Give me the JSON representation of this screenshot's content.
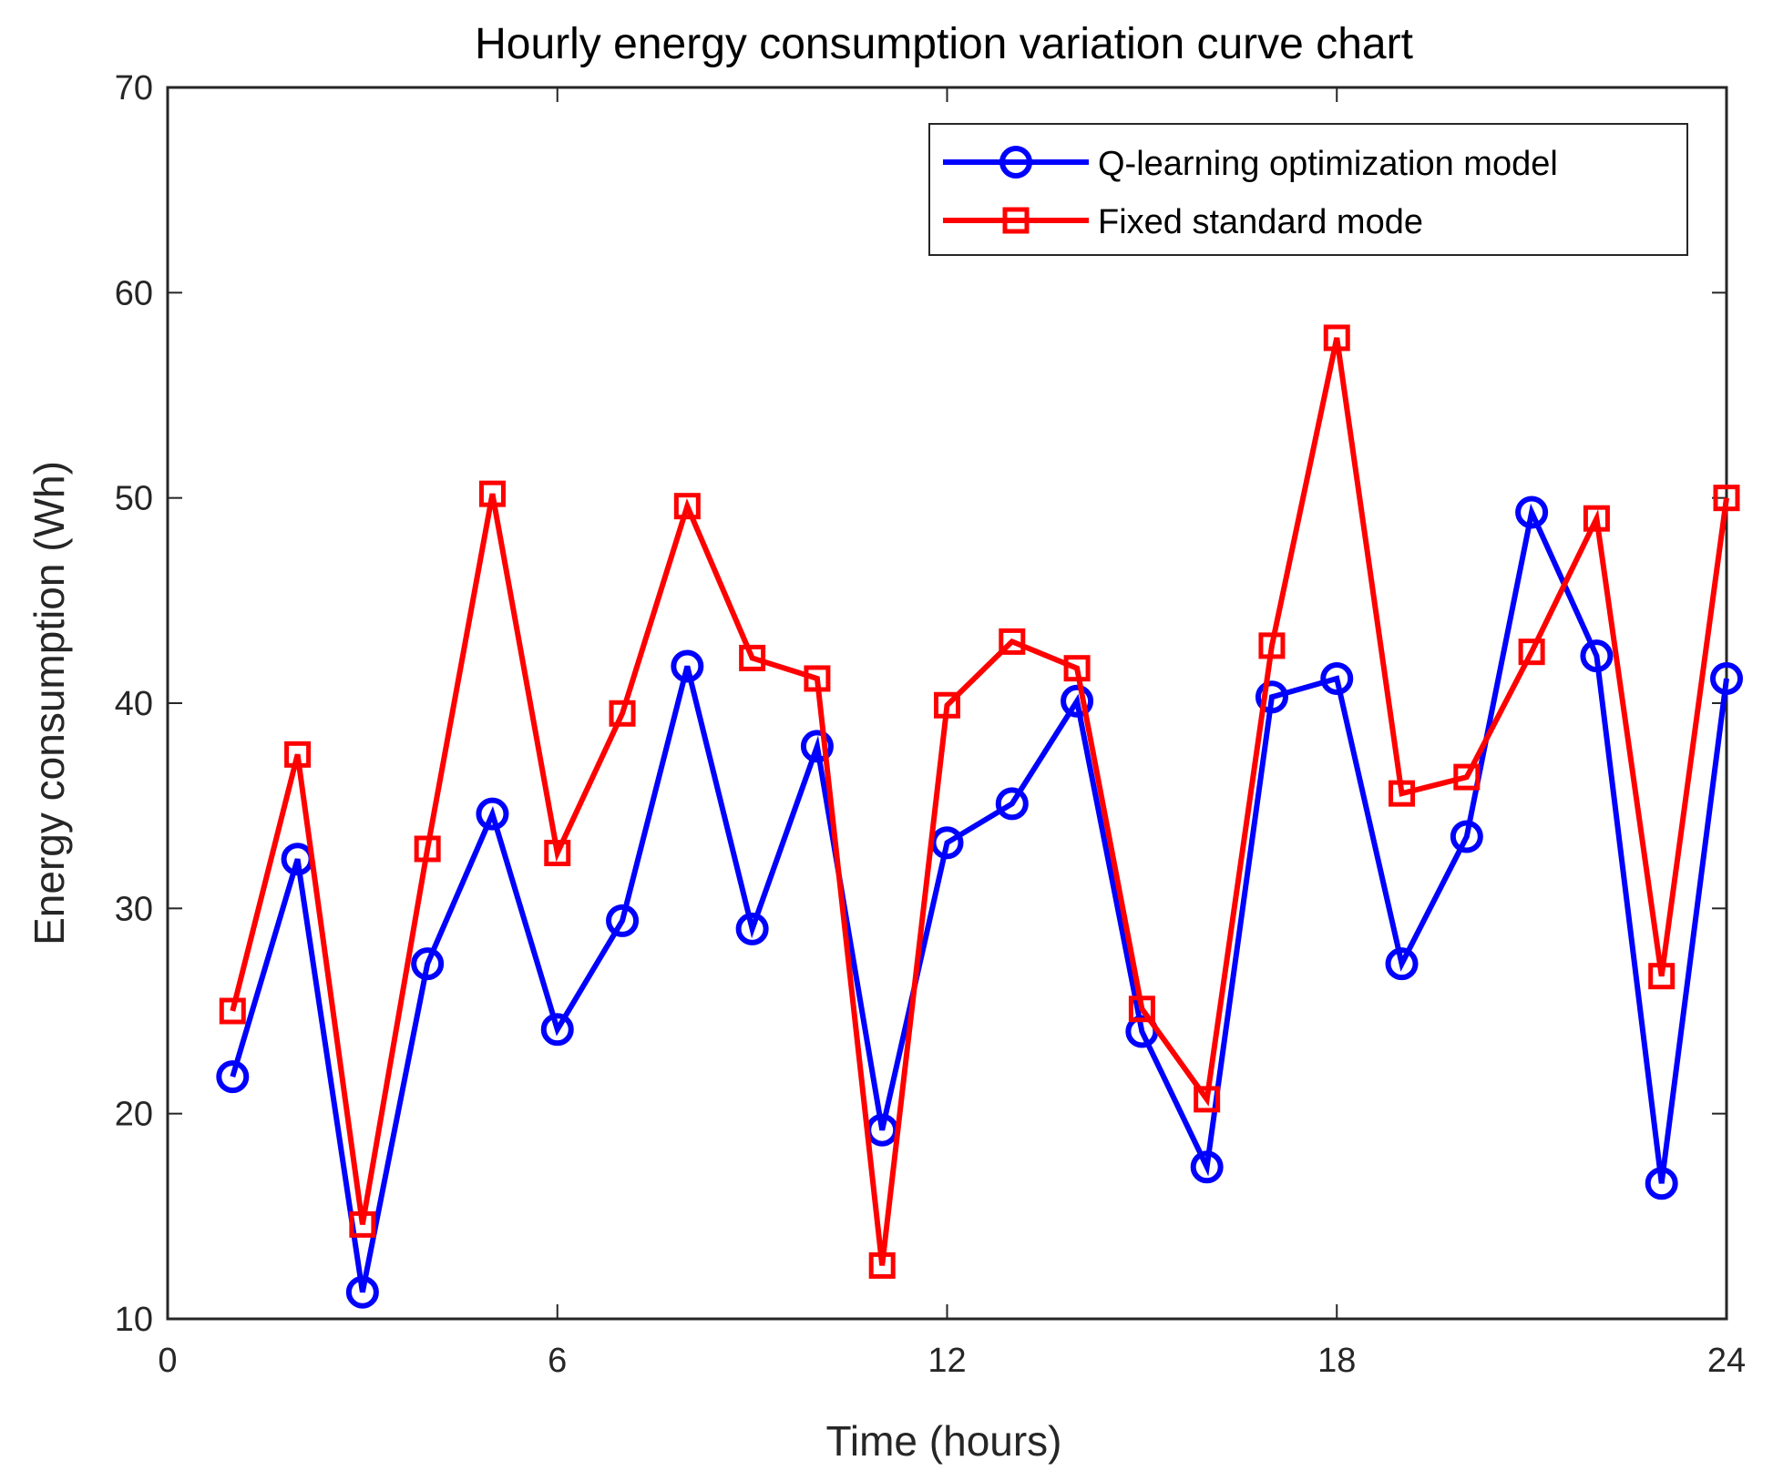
{
  "chart_data": {
    "type": "line",
    "title": "Hourly energy consumption variation curve chart",
    "xlabel": "Time (hours)",
    "ylabel": "Energy consumption (Wh)",
    "xlim": [
      0,
      24
    ],
    "ylim": [
      10,
      70
    ],
    "xticks": [
      0,
      6,
      12,
      18,
      24
    ],
    "yticks": [
      10,
      20,
      30,
      40,
      50,
      60,
      70
    ],
    "grid": false,
    "legend_position": "top-right",
    "x": [
      1,
      2,
      3,
      4,
      5,
      6,
      7,
      8,
      9,
      10,
      11,
      12,
      13,
      14,
      15,
      16,
      17,
      18,
      19,
      20,
      21,
      22,
      23,
      24
    ],
    "series": [
      {
        "name": "Q-learning optimization model",
        "color": "#0000ff",
        "marker": "circle",
        "values": [
          21.8,
          32.4,
          11.3,
          27.3,
          34.6,
          24.1,
          29.4,
          41.8,
          29.0,
          37.9,
          19.2,
          33.2,
          35.1,
          40.1,
          24.0,
          17.4,
          40.3,
          41.2,
          27.3,
          33.5,
          49.3,
          42.3,
          16.6,
          41.2
        ]
      },
      {
        "name": "Fixed standard mode",
        "color": "#ff0000",
        "marker": "square",
        "values": [
          25.0,
          37.5,
          14.6,
          32.9,
          50.2,
          32.7,
          39.5,
          49.6,
          42.2,
          41.2,
          12.6,
          39.9,
          43.0,
          41.7,
          25.1,
          20.7,
          42.8,
          57.8,
          35.6,
          36.4,
          42.5,
          49.0,
          26.7,
          50.0
        ]
      }
    ]
  }
}
